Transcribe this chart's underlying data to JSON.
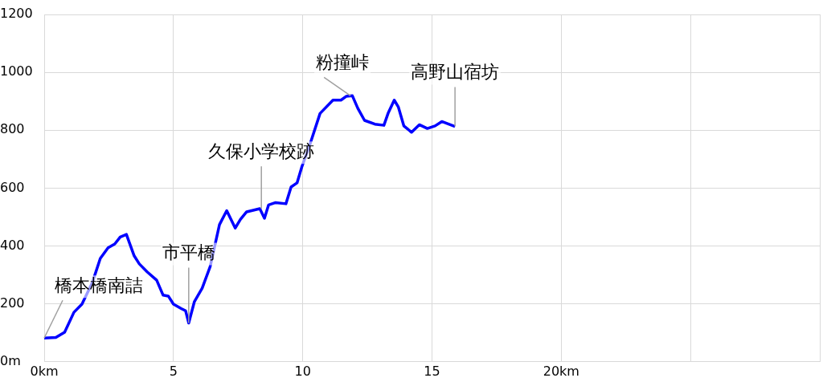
{
  "chart_data": {
    "type": "line",
    "xlim": [
      0,
      30
    ],
    "xticks": [
      {
        "value": 0,
        "label": "0km"
      },
      5,
      10,
      15,
      {
        "value": 20,
        "label": "20km"
      },
      {
        "value": 25,
        "label": null
      },
      {
        "value": 30,
        "label": null
      }
    ],
    "ylim": [
      0,
      1200
    ],
    "yticks": [
      {
        "value": 0,
        "label": "0m"
      },
      200,
      400,
      600,
      800,
      1000,
      1200
    ],
    "grid": true,
    "legend": false,
    "marker": "none",
    "line_style": "solid",
    "series": [
      {
        "color": "#0000ff",
        "x": [
          0,
          0.45,
          0.79,
          1.15,
          1.46,
          1.86,
          2.17,
          2.47,
          2.73,
          2.94,
          3.18,
          3.48,
          3.68,
          3.99,
          4.35,
          4.6,
          4.8,
          5.0,
          5.3,
          5.47,
          5.59,
          5.81,
          6.11,
          6.42,
          6.78,
          7.06,
          7.39,
          7.59,
          7.83,
          8.34,
          8.52,
          8.68,
          8.95,
          9.35,
          9.55,
          9.78,
          9.96,
          10.26,
          10.67,
          11.17,
          11.48,
          11.68,
          11.92,
          12.13,
          12.39,
          12.79,
          13.14,
          13.3,
          13.54,
          13.7,
          13.91,
          14.21,
          14.51,
          14.82,
          15.12,
          15.38,
          15.89
        ],
        "values": [
          82,
          84,
          102,
          171,
          199,
          273,
          357,
          394,
          407,
          431,
          440,
          366,
          338,
          310,
          282,
          230,
          227,
          199,
          184,
          176,
          134,
          208,
          254,
          329,
          474,
          522,
          462,
          492,
          518,
          529,
          496,
          542,
          550,
          546,
          604,
          618,
          672,
          746,
          858,
          904,
          904,
          917,
          919,
          876,
          834,
          821,
          817,
          858,
          904,
          880,
          815,
          793,
          819,
          806,
          815,
          830,
          813
        ]
      }
    ],
    "annotations": [
      {
        "text": "橋本橋南詰",
        "x": 0,
        "y": 82
      },
      {
        "text": "市平橋",
        "x": 5.59,
        "y": 134
      },
      {
        "text": "久保小学校跡",
        "x": 8.4,
        "y": 528
      },
      {
        "text": "粉撞峠",
        "x": 11.85,
        "y": 919
      },
      {
        "text": "高野山宿坊",
        "x": 15.89,
        "y": 813
      }
    ]
  }
}
